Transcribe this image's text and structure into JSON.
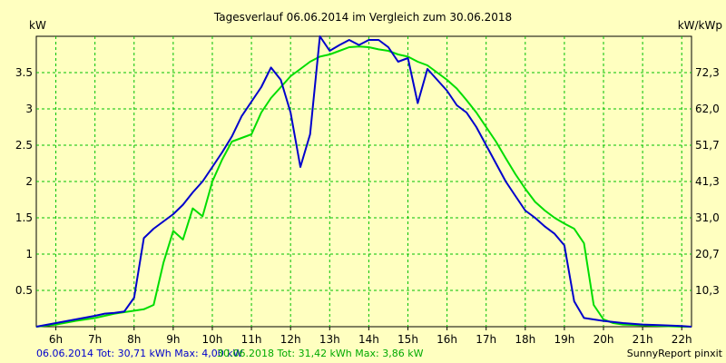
{
  "chart_data": {
    "type": "line",
    "title": "Tagesverlauf 06.06.2014 im Vergleich zum 30.06.2018",
    "ylabel_left": "kW",
    "ylabel_right": "kW/kWp",
    "xlim": [
      5.5,
      22.25
    ],
    "ylim": [
      0,
      4.0
    ],
    "x_ticks": [
      6,
      7,
      8,
      9,
      10,
      11,
      12,
      13,
      14,
      15,
      16,
      17,
      18,
      19,
      20,
      21,
      22
    ],
    "x_tick_labels": [
      "6h",
      "7h",
      "8h",
      "9h",
      "10h",
      "11h",
      "12h",
      "13h",
      "14h",
      "15h",
      "16h",
      "17h",
      "18h",
      "19h",
      "20h",
      "21h",
      "22h"
    ],
    "y_left_ticks": [
      0.5,
      1,
      1.5,
      2,
      2.5,
      3,
      3.5
    ],
    "y_left_tick_labels": [
      "0.5",
      "1",
      "1.5",
      "2",
      "2.5",
      "3",
      "3.5"
    ],
    "y_right_ticks": [
      0.5,
      1,
      1.5,
      2,
      2.5,
      3,
      3.5
    ],
    "y_right_tick_labels": [
      "10,3",
      "20,7",
      "31,0",
      "41,3",
      "51,7",
      "62,0",
      "72,3"
    ],
    "grid": true,
    "colors": {
      "background": "#ffffc0",
      "plot_bg": "#ffffc0",
      "grid": "#00c000",
      "series1": "#0000cc",
      "series2": "#00dd00",
      "footer_left": "#0000cc",
      "footer_right": "#00aa00"
    },
    "series": [
      {
        "name": "06.06.2014",
        "x": [
          5.5,
          6.0,
          6.5,
          7.0,
          7.25,
          7.5,
          7.75,
          8.0,
          8.25,
          8.5,
          8.75,
          9.0,
          9.25,
          9.5,
          9.75,
          10.0,
          10.25,
          10.5,
          10.75,
          11.0,
          11.25,
          11.5,
          11.75,
          12.0,
          12.25,
          12.5,
          12.75,
          13.0,
          13.25,
          13.5,
          13.75,
          14.0,
          14.25,
          14.5,
          14.75,
          15.0,
          15.25,
          15.5,
          15.75,
          16.0,
          16.25,
          16.5,
          16.75,
          17.0,
          17.25,
          17.5,
          17.75,
          18.0,
          18.25,
          18.5,
          18.75,
          19.0,
          19.25,
          19.5,
          19.75,
          20.0,
          20.5,
          21.0,
          21.5,
          22.0,
          22.25
        ],
        "y": [
          0.0,
          0.05,
          0.1,
          0.15,
          0.18,
          0.19,
          0.21,
          0.4,
          1.22,
          1.35,
          1.45,
          1.55,
          1.68,
          1.85,
          2.0,
          2.2,
          2.4,
          2.62,
          2.9,
          3.1,
          3.3,
          3.57,
          3.4,
          2.95,
          2.2,
          2.65,
          4.0,
          3.8,
          3.88,
          3.95,
          3.88,
          3.95,
          3.95,
          3.85,
          3.65,
          3.7,
          3.08,
          3.55,
          3.4,
          3.25,
          3.05,
          2.95,
          2.75,
          2.5,
          2.25,
          2.0,
          1.8,
          1.6,
          1.5,
          1.38,
          1.28,
          1.12,
          0.35,
          0.12,
          0.1,
          0.08,
          0.05,
          0.03,
          0.02,
          0.01,
          0.0
        ]
      },
      {
        "name": "30.06.2018",
        "x": [
          5.5,
          6.0,
          6.5,
          7.0,
          7.5,
          8.0,
          8.25,
          8.5,
          8.75,
          9.0,
          9.25,
          9.5,
          9.75,
          10.0,
          10.25,
          10.5,
          10.75,
          11.0,
          11.25,
          11.5,
          11.75,
          12.0,
          12.25,
          12.5,
          12.75,
          13.0,
          13.25,
          13.5,
          13.75,
          14.0,
          14.25,
          14.5,
          14.75,
          15.0,
          15.25,
          15.5,
          15.75,
          16.0,
          16.25,
          16.5,
          16.75,
          17.0,
          17.25,
          17.5,
          17.75,
          18.0,
          18.25,
          18.5,
          18.75,
          19.0,
          19.25,
          19.5,
          19.75,
          20.0,
          20.25,
          20.5,
          21.0,
          21.5,
          22.0,
          22.25
        ],
        "y": [
          0.0,
          0.03,
          0.08,
          0.12,
          0.18,
          0.22,
          0.24,
          0.3,
          0.88,
          1.32,
          1.2,
          1.63,
          1.52,
          2.0,
          2.3,
          2.55,
          2.6,
          2.65,
          2.95,
          3.15,
          3.3,
          3.45,
          3.55,
          3.65,
          3.72,
          3.75,
          3.8,
          3.85,
          3.86,
          3.85,
          3.82,
          3.8,
          3.75,
          3.72,
          3.65,
          3.6,
          3.5,
          3.4,
          3.28,
          3.12,
          2.95,
          2.75,
          2.55,
          2.32,
          2.1,
          1.9,
          1.72,
          1.6,
          1.5,
          1.42,
          1.35,
          1.15,
          0.3,
          0.1,
          0.05,
          0.03,
          0.02,
          0.01,
          0.0,
          0.0
        ]
      }
    ]
  },
  "footer": {
    "left": "06.06.2014 Tot: 30,71 kWh Max: 4,00 kW",
    "middle": "30.06.2018 Tot: 31,42 kWh Max: 3,86 kW",
    "right": "SunnyReport pinxit"
  }
}
